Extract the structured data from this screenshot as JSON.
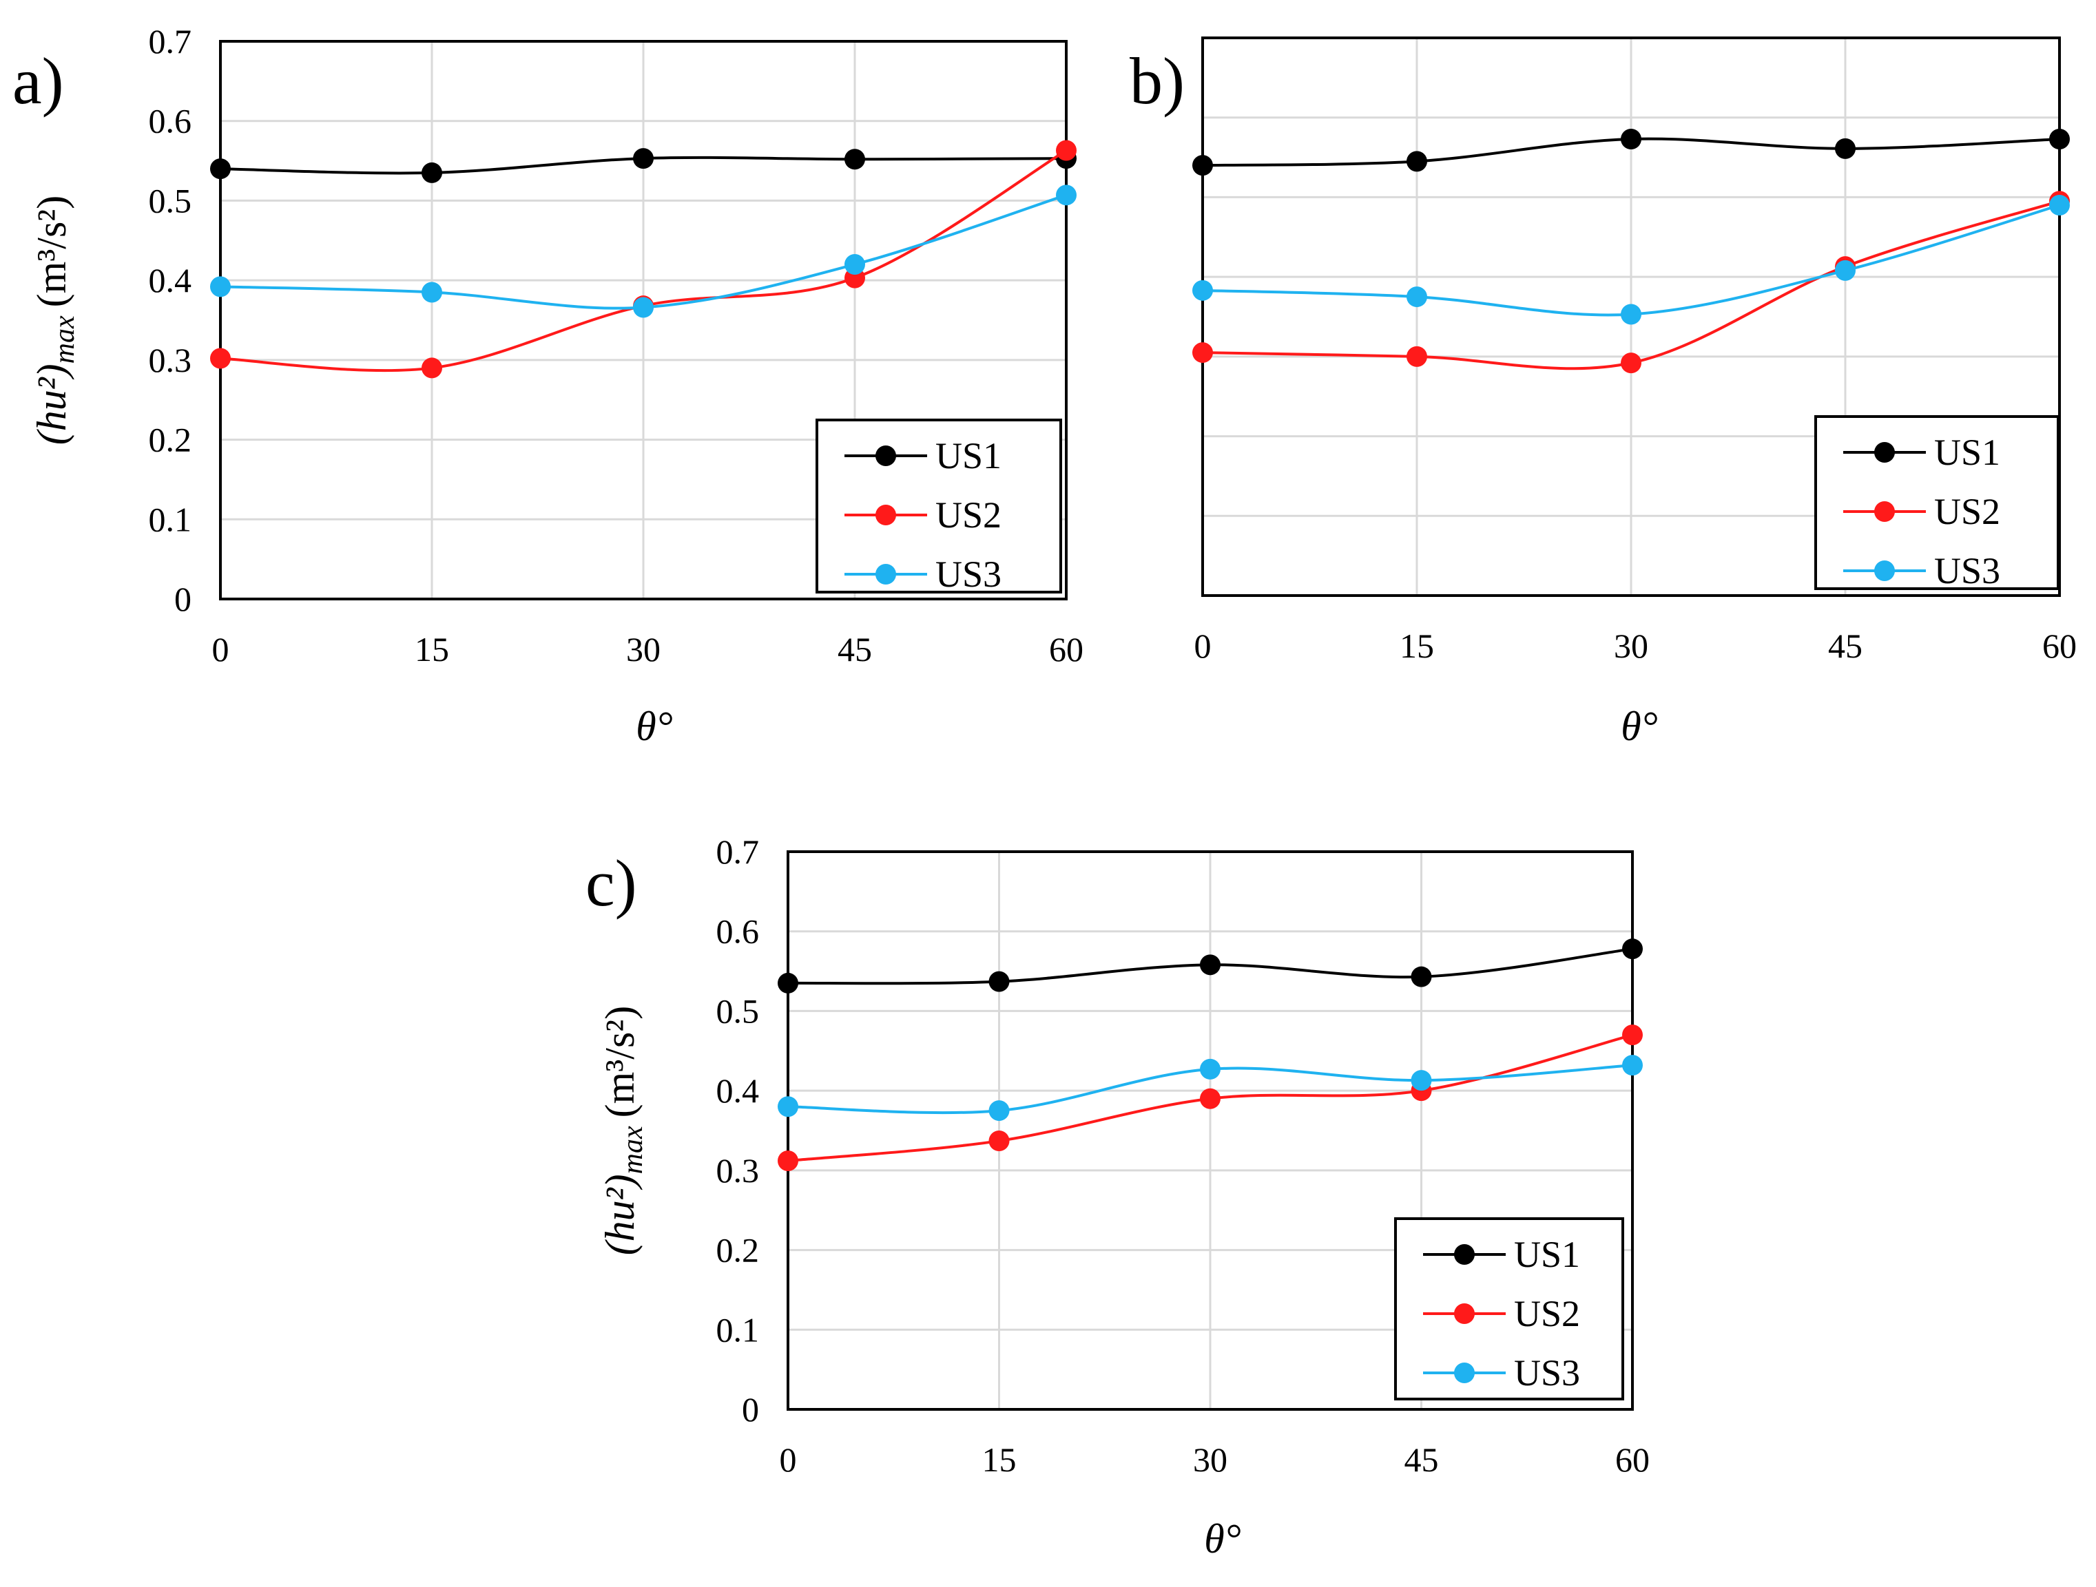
{
  "chart_data": [
    {
      "id": "a",
      "type": "line",
      "panel_label": "a)",
      "title": "",
      "xlabel": "θ°",
      "ylabel_main": "(hu²)",
      "ylabel_sub": "max",
      "ylabel_unit": "(m³/s²)",
      "x": [
        0,
        15,
        30,
        45,
        60
      ],
      "x_ticks": [
        "0",
        "15",
        "30",
        "45",
        "60"
      ],
      "y_ticks": [
        "0",
        "0.1",
        "0.2",
        "0.3",
        "0.4",
        "0.5",
        "0.6",
        "0.7"
      ],
      "show_y_ticks": true,
      "ylim": [
        0,
        0.7
      ],
      "xlim": [
        0,
        60
      ],
      "grid": true,
      "legend_position": "bottom-right",
      "series": [
        {
          "name": "US1",
          "color": "#000000",
          "values": [
            0.54,
            0.535,
            0.553,
            0.552,
            0.553
          ]
        },
        {
          "name": "US2",
          "color": "#ff1a1a",
          "values": [
            0.302,
            0.29,
            0.368,
            0.403,
            0.563
          ]
        },
        {
          "name": "US3",
          "color": "#1fb2f0",
          "values": [
            0.392,
            0.385,
            0.366,
            0.42,
            0.507
          ]
        }
      ]
    },
    {
      "id": "b",
      "type": "line",
      "panel_label": "b)",
      "title": "",
      "xlabel": "θ°",
      "x": [
        0,
        15,
        30,
        45,
        60
      ],
      "x_ticks": [
        "0",
        "15",
        "30",
        "45",
        "60"
      ],
      "y_ticks": [],
      "show_y_ticks": false,
      "ylim": [
        0,
        0.7
      ],
      "xlim": [
        0,
        60
      ],
      "grid": true,
      "legend_position": "bottom-right",
      "series": [
        {
          "name": "US1",
          "color": "#000000",
          "values": [
            0.54,
            0.545,
            0.573,
            0.561,
            0.573
          ]
        },
        {
          "name": "US2",
          "color": "#ff1a1a",
          "values": [
            0.305,
            0.3,
            0.292,
            0.413,
            0.495
          ]
        },
        {
          "name": "US3",
          "color": "#1fb2f0",
          "values": [
            0.383,
            0.375,
            0.353,
            0.408,
            0.49
          ]
        }
      ]
    },
    {
      "id": "c",
      "type": "line",
      "panel_label": "c)",
      "title": "",
      "xlabel": "θ°",
      "ylabel_main": "(hu²)",
      "ylabel_sub": "max",
      "ylabel_unit": "(m³/s²)",
      "x": [
        0,
        15,
        30,
        45,
        60
      ],
      "x_ticks": [
        "0",
        "15",
        "30",
        "45",
        "60"
      ],
      "y_ticks": [
        "0",
        "0.1",
        "0.2",
        "0.3",
        "0.4",
        "0.5",
        "0.6",
        "0.7"
      ],
      "show_y_ticks": true,
      "ylim": [
        0,
        0.7
      ],
      "xlim": [
        0,
        60
      ],
      "grid": true,
      "legend_position": "bottom-right",
      "series": [
        {
          "name": "US1",
          "color": "#000000",
          "values": [
            0.535,
            0.537,
            0.558,
            0.543,
            0.578
          ]
        },
        {
          "name": "US2",
          "color": "#ff1a1a",
          "values": [
            0.312,
            0.337,
            0.39,
            0.4,
            0.47
          ]
        },
        {
          "name": "US3",
          "color": "#1fb2f0",
          "values": [
            0.38,
            0.375,
            0.427,
            0.413,
            0.432
          ]
        }
      ]
    }
  ]
}
